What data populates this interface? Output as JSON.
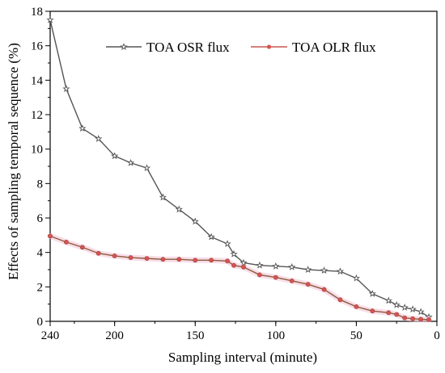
{
  "chart_data": {
    "type": "line",
    "title": "",
    "xlabel": "Sampling interval (minute)",
    "ylabel": "Effects of sampling temporal sequence (%)",
    "xlim": [
      240,
      0
    ],
    "ylim": [
      0,
      18
    ],
    "xticks": [
      240,
      200,
      150,
      100,
      50,
      0
    ],
    "yticks": [
      0,
      2,
      4,
      6,
      8,
      10,
      12,
      14,
      16,
      18
    ],
    "legend_position": "top-right",
    "grid": false,
    "series": [
      {
        "name": "TOA OSR flux",
        "color": "#555555",
        "marker": "open-star",
        "x": [
          240,
          230,
          220,
          210,
          200,
          190,
          180,
          170,
          160,
          150,
          140,
          130,
          126,
          120,
          110,
          100,
          90,
          80,
          70,
          60,
          50,
          40,
          30,
          25,
          20,
          15,
          10,
          5
        ],
        "y": [
          17.5,
          13.5,
          11.2,
          10.6,
          9.6,
          9.2,
          8.9,
          7.2,
          6.5,
          5.8,
          4.9,
          4.5,
          3.9,
          3.4,
          3.25,
          3.2,
          3.15,
          3.0,
          2.95,
          2.9,
          2.5,
          1.6,
          1.2,
          0.95,
          0.8,
          0.7,
          0.55,
          0.25
        ]
      },
      {
        "name": "TOA OLR flux",
        "color": "#d9534f",
        "marker": "filled-circle",
        "x": [
          240,
          230,
          220,
          210,
          200,
          190,
          180,
          170,
          160,
          150,
          140,
          130,
          126,
          120,
          110,
          100,
          90,
          80,
          70,
          60,
          50,
          40,
          30,
          25,
          20,
          15,
          10,
          5
        ],
        "y": [
          4.95,
          4.6,
          4.3,
          3.95,
          3.8,
          3.7,
          3.65,
          3.6,
          3.6,
          3.55,
          3.55,
          3.5,
          3.25,
          3.15,
          2.7,
          2.55,
          2.35,
          2.15,
          1.85,
          1.25,
          0.85,
          0.6,
          0.5,
          0.4,
          0.2,
          0.15,
          0.12,
          0.1
        ]
      }
    ]
  }
}
